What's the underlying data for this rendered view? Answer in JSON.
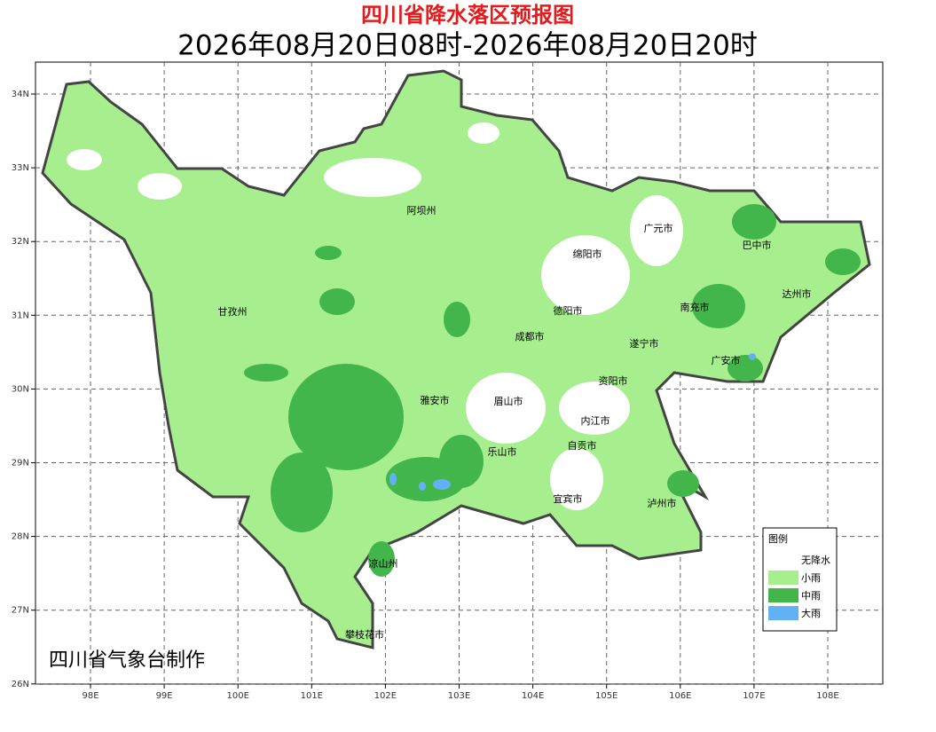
{
  "header": {
    "title": "四川省降水落区预报图",
    "subtitle": "2026年08月20日08时-2026年08月20日20时"
  },
  "map": {
    "x_ticks": [
      "98E",
      "99E",
      "100E",
      "101E",
      "102E",
      "103E",
      "104E",
      "105E",
      "106E",
      "107E",
      "108E"
    ],
    "y_ticks": [
      "34N",
      "33N",
      "32N",
      "31N",
      "30N",
      "29N",
      "28N",
      "27N",
      "26N"
    ],
    "cities": [
      "阿坝州",
      "广元市",
      "巴中市",
      "绵阳市",
      "达州市",
      "甘孜州",
      "德阳市",
      "南充市",
      "成都市",
      "遂宁市",
      "广安市",
      "资阳市",
      "雅安市",
      "眉山市",
      "内江市",
      "乐山市",
      "自贡市",
      "宜宾市",
      "泸州市",
      "凉山州",
      "攀枝花市"
    ]
  },
  "legend": {
    "title": "图例",
    "items": [
      "无降水",
      "小雨",
      "中雨",
      "大雨"
    ]
  },
  "credit": "四川省气象台制作"
}
